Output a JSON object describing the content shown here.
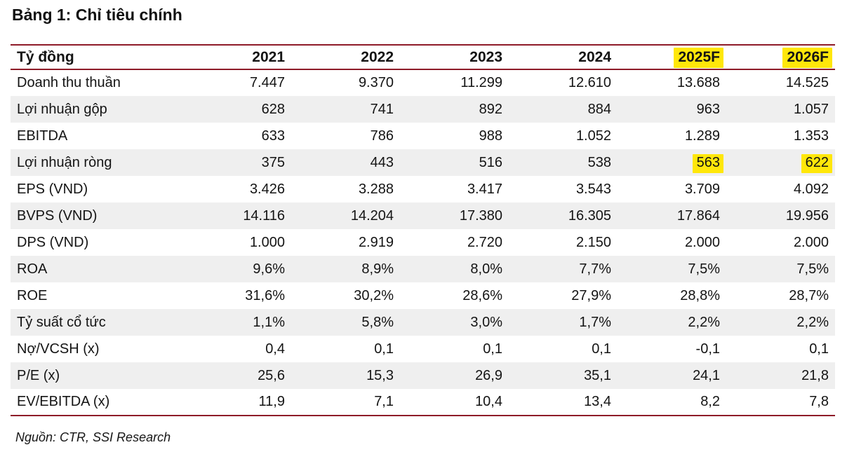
{
  "title": "Bảng 1: Chỉ tiêu chính",
  "table": {
    "unit_label": "Tỷ đồng",
    "columns": [
      {
        "label": "2021",
        "highlight": false
      },
      {
        "label": "2022",
        "highlight": false
      },
      {
        "label": "2023",
        "highlight": false
      },
      {
        "label": "2024",
        "highlight": false
      },
      {
        "label": "2025F",
        "highlight": true
      },
      {
        "label": "2026F",
        "highlight": true
      }
    ],
    "rows": [
      {
        "label": "Doanh thu thuần",
        "values": [
          "7.447",
          "9.370",
          "11.299",
          "12.610",
          "13.688",
          "14.525"
        ],
        "highlight_cols": []
      },
      {
        "label": "Lợi nhuận gộp",
        "values": [
          "628",
          "741",
          "892",
          "884",
          "963",
          "1.057"
        ],
        "highlight_cols": []
      },
      {
        "label": "EBITDA",
        "values": [
          "633",
          "786",
          "988",
          "1.052",
          "1.289",
          "1.353"
        ],
        "highlight_cols": []
      },
      {
        "label": "Lợi nhuận ròng",
        "values": [
          "375",
          "443",
          "516",
          "538",
          "563",
          "622"
        ],
        "highlight_cols": [
          4,
          5
        ]
      },
      {
        "label": "EPS (VND)",
        "values": [
          "3.426",
          "3.288",
          "3.417",
          "3.543",
          "3.709",
          "4.092"
        ],
        "highlight_cols": []
      },
      {
        "label": "BVPS (VND)",
        "values": [
          "14.116",
          "14.204",
          "17.380",
          "16.305",
          "17.864",
          "19.956"
        ],
        "highlight_cols": []
      },
      {
        "label": "DPS (VND)",
        "values": [
          "1.000",
          "2.919",
          "2.720",
          "2.150",
          "2.000",
          "2.000"
        ],
        "highlight_cols": []
      },
      {
        "label": "ROA",
        "values": [
          "9,6%",
          "8,9%",
          "8,0%",
          "7,7%",
          "7,5%",
          "7,5%"
        ],
        "highlight_cols": []
      },
      {
        "label": "ROE",
        "values": [
          "31,6%",
          "30,2%",
          "28,6%",
          "27,9%",
          "28,8%",
          "28,7%"
        ],
        "highlight_cols": []
      },
      {
        "label": "Tỷ suất cổ tức",
        "values": [
          "1,1%",
          "5,8%",
          "3,0%",
          "1,7%",
          "2,2%",
          "2,2%"
        ],
        "highlight_cols": []
      },
      {
        "label": "Nợ/VCSH (x)",
        "values": [
          "0,4",
          "0,1",
          "0,1",
          "0,1",
          "-0,1",
          "0,1"
        ],
        "highlight_cols": []
      },
      {
        "label": "P/E (x)",
        "values": [
          "25,6",
          "15,3",
          "26,9",
          "35,1",
          "24,1",
          "21,8"
        ],
        "highlight_cols": []
      },
      {
        "label": "EV/EBITDA (x)",
        "values": [
          "11,9",
          "7,1",
          "10,4",
          "13,4",
          "8,2",
          "7,8"
        ],
        "highlight_cols": []
      }
    ]
  },
  "footer": {
    "source": "Nguồn: CTR, SSI Research"
  },
  "colors": {
    "accent_line": "#8e1b28",
    "highlight_yellow": "#ffe70a",
    "stripe_gray": "#efefef",
    "text": "#141414"
  }
}
